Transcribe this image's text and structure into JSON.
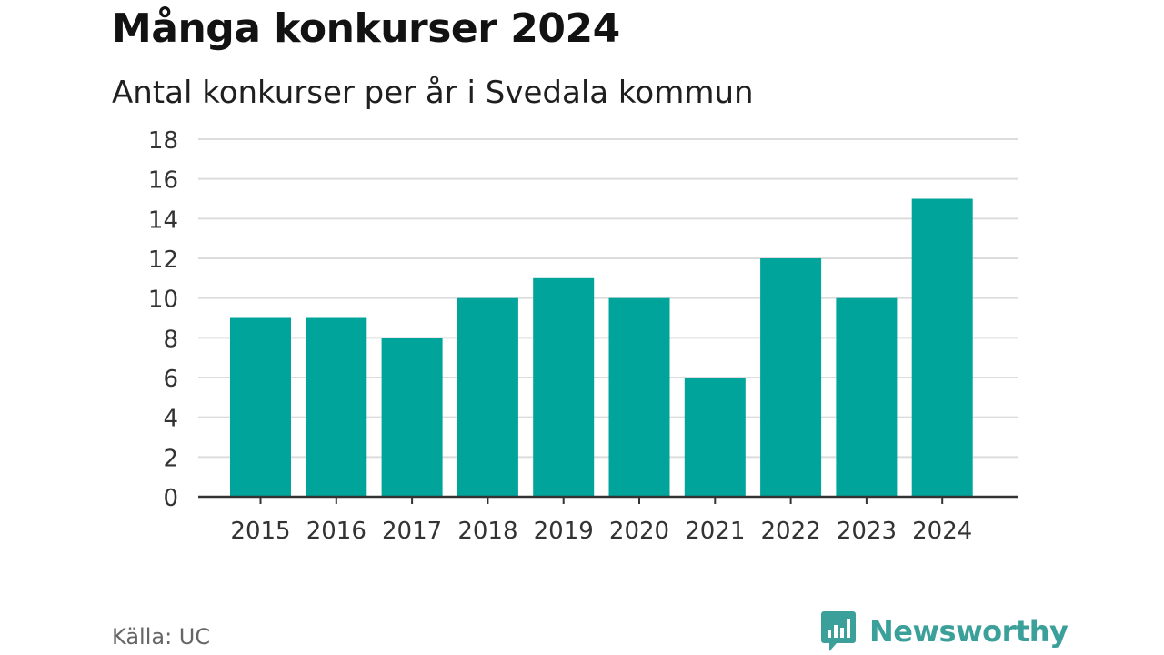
{
  "header": {
    "title": "Många konkurser 2024",
    "subtitle": "Antal konkurser per år i Svedala kommun"
  },
  "footer": {
    "source": "Källa: UC",
    "brand": "Newsworthy"
  },
  "colors": {
    "bar": "#00a49a",
    "grid": "#dcdcdc",
    "axis": "#333333",
    "brand": "#3b9f9a"
  },
  "chart_data": {
    "type": "bar",
    "categories": [
      "2015",
      "2016",
      "2017",
      "2018",
      "2019",
      "2020",
      "2021",
      "2022",
      "2023",
      "2024"
    ],
    "values": [
      9,
      9,
      8,
      10,
      11,
      10,
      6,
      12,
      10,
      15
    ],
    "title": "Många konkurser 2024",
    "subtitle": "Antal konkurser per år i Svedala kommun",
    "xlabel": "",
    "ylabel": "",
    "ylim": [
      0,
      18
    ],
    "yticks": [
      "0",
      "2",
      "4",
      "6",
      "8",
      "10",
      "12",
      "14",
      "16",
      "18"
    ],
    "grid": true,
    "legend": "none"
  }
}
